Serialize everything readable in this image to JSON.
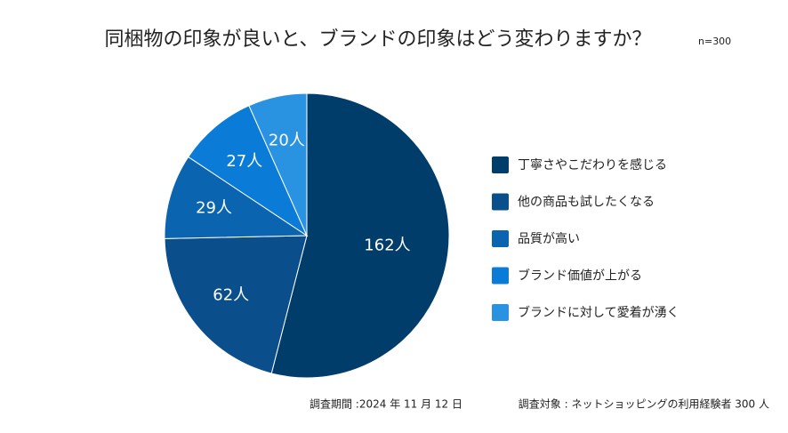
{
  "chart_data": {
    "type": "pie",
    "title": "同梱物の印象が良いと、ブランドの印象はどう変わりますか？",
    "subtitle": "n=300",
    "categories": [
      "丁寧さやこだわりを感じる",
      "他の商品も試したくなる",
      "品質が高い",
      "ブランド価値が上がる",
      "ブランドに対して愛着が湧く"
    ],
    "values": [
      162,
      62,
      29,
      27,
      20
    ],
    "value_labels": [
      "162人",
      "62人",
      "29人",
      "27人",
      "20人"
    ],
    "colors": [
      "#003d6b",
      "#0a4f8c",
      "#0b64b0",
      "#0a7bd7",
      "#2a93e1"
    ],
    "legend": "right",
    "notes": [
      "調査期間 :2024 年 11 月 12 日",
      "調査対象 : ネットショッピングの利用経験者 300 人"
    ]
  }
}
